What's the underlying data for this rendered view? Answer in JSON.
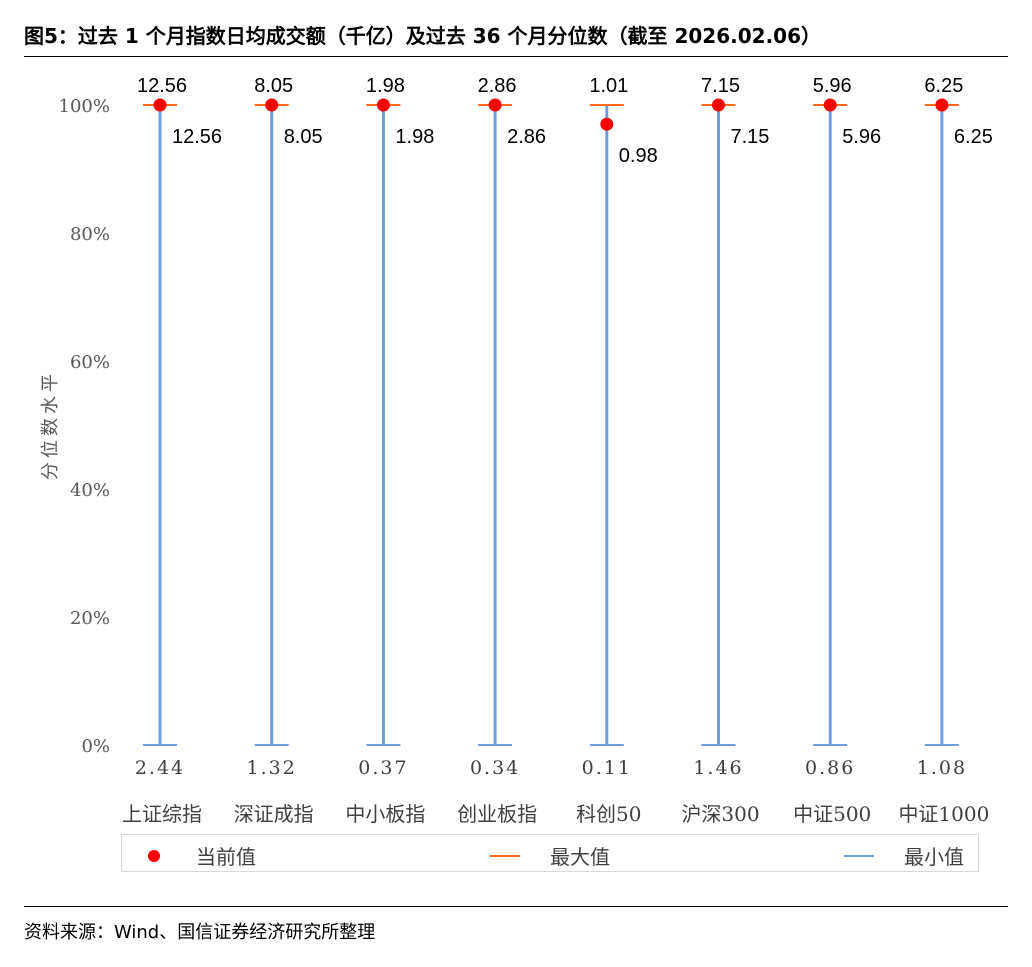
{
  "title": "图5：过去 1 个月指数日均成交额（千亿）及过去 36 个月分位数（截至 2026.02.06）",
  "source": "资料来源：Wind、国信证券经济研究所整理",
  "colors": {
    "current": "#ff0000",
    "max": "#ff6a1a",
    "min": "#6e9de0"
  },
  "legend": {
    "current": "当前值",
    "max": "最大值",
    "min": "最小值"
  },
  "chart_data": {
    "type": "scatter",
    "title": "",
    "xlabel": "",
    "ylabel": "分位数水平",
    "ylim": [
      0,
      100
    ],
    "y_ticks": [
      "0%",
      "20%",
      "40%",
      "60%",
      "80%",
      "100%"
    ],
    "grid": false,
    "legend_position": "bottom",
    "categories": [
      "上证综指",
      "深证成指",
      "中小板指",
      "创业板指",
      "科创50",
      "沪深300",
      "中证500",
      "中证1000"
    ],
    "series": [
      {
        "name": "当前值",
        "percentile": [
          100,
          100,
          100,
          100,
          97,
          100,
          100,
          100
        ],
        "value_labels": [
          "12.56",
          "8.05",
          "1.98",
          "2.86",
          "0.98",
          "7.15",
          "5.96",
          "6.25"
        ]
      },
      {
        "name": "最大值",
        "percentile": [
          100,
          100,
          100,
          100,
          100,
          100,
          100,
          100
        ],
        "value_labels": [
          "12.56",
          "8.05",
          "1.98",
          "2.86",
          "1.01",
          "7.15",
          "5.96",
          "6.25"
        ]
      },
      {
        "name": "最小值",
        "percentile": [
          0,
          0,
          0,
          0,
          0,
          0,
          0,
          0
        ],
        "value_labels": [
          "2.44",
          "1.32",
          "0.37",
          "0.34",
          "0.11",
          "1.46",
          "0.86",
          "1.08"
        ]
      }
    ]
  }
}
